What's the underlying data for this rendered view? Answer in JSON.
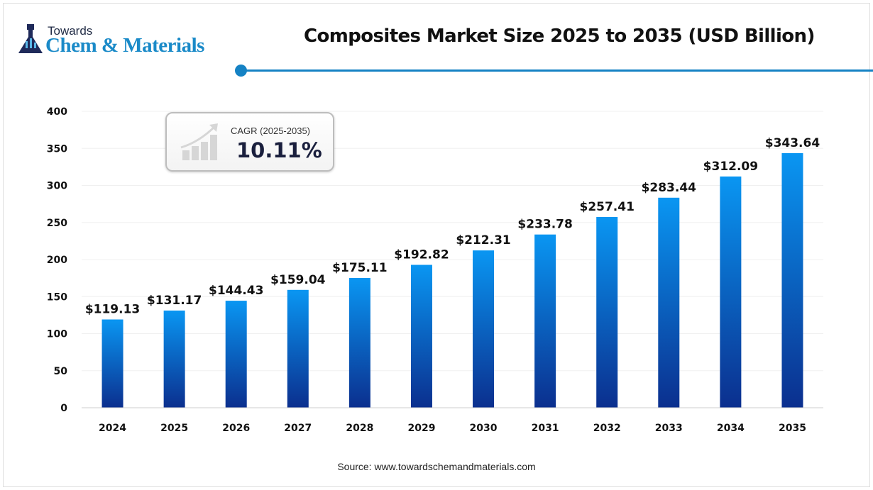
{
  "logo": {
    "line1": "Towards",
    "line2": "Chem & Materials"
  },
  "cagr": {
    "label": "CAGR (2025-2035)",
    "value": "10.11%"
  },
  "source": "Source: www.towardschemandmaterials.com",
  "colors": {
    "bar_top": "#0a96f2",
    "bar_bottom": "#0b2f8e",
    "accent": "#1582c4"
  },
  "chart_data": {
    "type": "bar",
    "title": "Composites Market Size 2025 to 2035 (USD Billion)",
    "xlabel": "",
    "ylabel": "",
    "categories": [
      "2024",
      "2025",
      "2026",
      "2027",
      "2028",
      "2029",
      "2030",
      "2031",
      "2032",
      "2033",
      "2034",
      "2035"
    ],
    "values": [
      119.13,
      131.17,
      144.43,
      159.04,
      175.11,
      192.82,
      212.31,
      233.78,
      257.41,
      283.44,
      312.09,
      343.64
    ],
    "data_labels": [
      "$119.13",
      "$131.17",
      "$144.43",
      "$159.04",
      "$175.11",
      "$192.82",
      "$212.31",
      "$233.78",
      "$257.41",
      "$283.44",
      "$312.09",
      "$343.64"
    ],
    "ylim": [
      0,
      400
    ],
    "yticks": [
      0,
      50,
      100,
      150,
      200,
      250,
      300,
      350,
      400
    ],
    "grid": true,
    "legend": "none"
  }
}
